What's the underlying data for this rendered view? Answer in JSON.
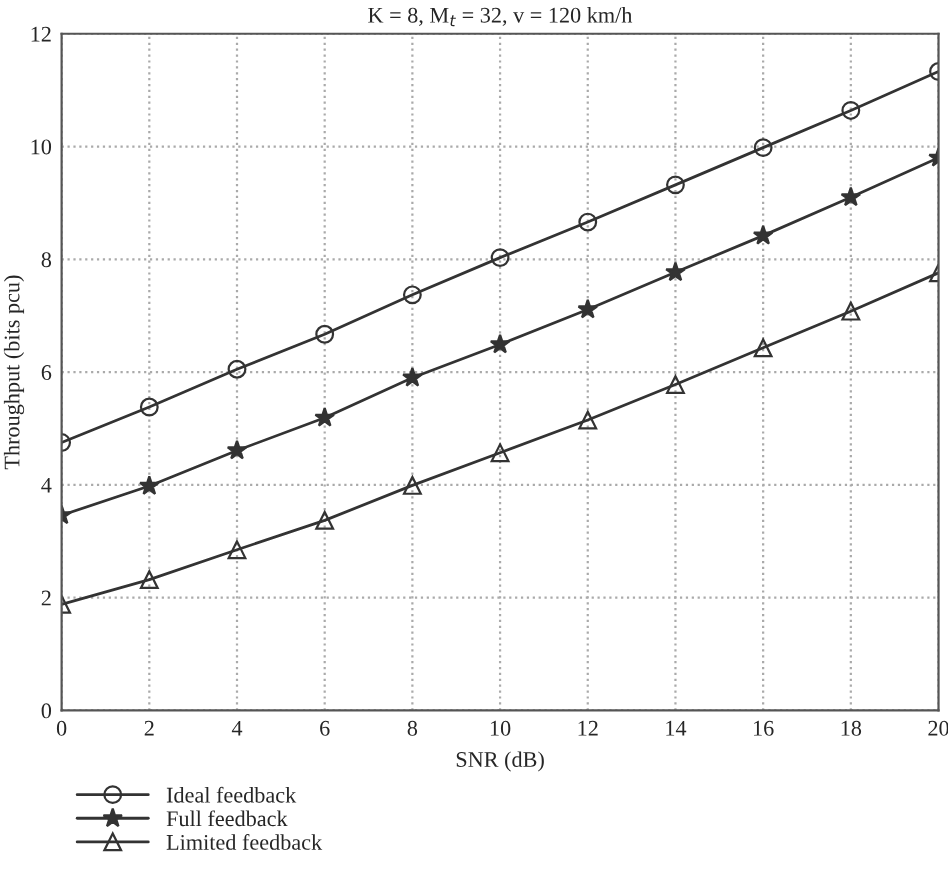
{
  "chart_data": {
    "type": "line",
    "title": "K = 8, M$_{t}$ = 32, v = 120 km/h",
    "xlabel": "SNR (dB)",
    "ylabel": "Throughput (bits pcu)",
    "x": [
      0,
      2,
      4,
      6,
      8,
      10,
      12,
      14,
      16,
      18,
      20
    ],
    "series": [
      {
        "name": "Ideal feedback",
        "color": "#333333",
        "marker": "circle",
        "values": [
          4.75,
          5.38,
          6.05,
          6.67,
          7.37,
          8.03,
          8.66,
          9.32,
          9.98,
          10.64,
          11.33
        ]
      },
      {
        "name": "Full feedback",
        "color": "#333333",
        "marker": "star",
        "values": [
          3.46,
          3.98,
          4.61,
          5.19,
          5.9,
          6.49,
          7.11,
          7.77,
          8.42,
          9.1,
          9.8
        ]
      },
      {
        "name": "Limited feedback",
        "color": "#333333",
        "marker": "triangle",
        "values": [
          1.88,
          2.32,
          2.85,
          3.37,
          3.99,
          4.57,
          5.15,
          5.78,
          6.43,
          7.08,
          7.76
        ]
      }
    ],
    "xlim": [
      0,
      20
    ],
    "xticks": [
      0,
      2,
      4,
      6,
      8,
      10,
      12,
      14,
      16,
      18,
      20
    ],
    "ylim": [
      0,
      12
    ],
    "yticks": [
      0,
      2,
      4,
      6,
      8,
      10,
      12
    ],
    "grid": true,
    "line_style": "solid",
    "legend": "bottom left"
  }
}
